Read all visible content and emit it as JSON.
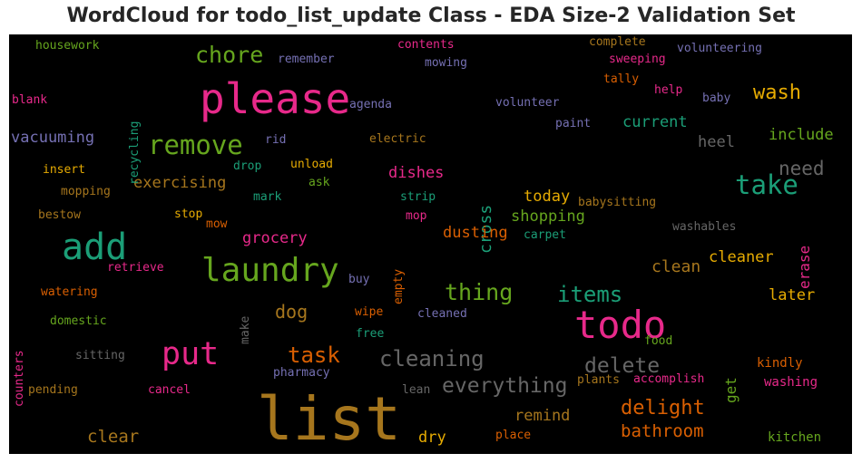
{
  "chart_data": {
    "type": "wordcloud",
    "title": "WordCloud for todo_list_update Class - EDA Size-2 Validation Set",
    "background": "#000000",
    "palette": [
      "#1b9e77",
      "#d95f02",
      "#7570b3",
      "#e7298a",
      "#66a61e",
      "#e6ab02",
      "#a6761d",
      "#666666"
    ],
    "words": [
      {
        "text": "list",
        "size": 66,
        "color": "#a6761d"
      },
      {
        "text": "please",
        "size": 46,
        "color": "#e7298a"
      },
      {
        "text": "todo",
        "size": 42,
        "color": "#e7298a"
      },
      {
        "text": "add",
        "size": 40,
        "color": "#1b9e77"
      },
      {
        "text": "laundry",
        "size": 36,
        "color": "#66a61e"
      },
      {
        "text": "put",
        "size": 35,
        "color": "#e7298a"
      },
      {
        "text": "remove",
        "size": 29,
        "color": "#66a61e"
      },
      {
        "text": "take",
        "size": 29,
        "color": "#1b9e77"
      },
      {
        "text": "chore",
        "size": 25,
        "color": "#66a61e"
      },
      {
        "text": "thing",
        "size": 25,
        "color": "#66a61e"
      },
      {
        "text": "items",
        "size": 24,
        "color": "#1b9e77"
      },
      {
        "text": "task",
        "size": 24,
        "color": "#d95f02"
      },
      {
        "text": "cleaning",
        "size": 24,
        "color": "#666666"
      },
      {
        "text": "everything",
        "size": 23,
        "color": "#666666"
      },
      {
        "text": "delete",
        "size": 23,
        "color": "#666666"
      },
      {
        "text": "wash",
        "size": 22,
        "color": "#e6ab02"
      },
      {
        "text": "delight",
        "size": 22,
        "color": "#d95f02"
      },
      {
        "text": "need",
        "size": 21,
        "color": "#666666"
      },
      {
        "text": "dog",
        "size": 20,
        "color": "#a6761d"
      },
      {
        "text": "bathroom",
        "size": 19,
        "color": "#d95f02"
      },
      {
        "text": "clear",
        "size": 19,
        "color": "#a6761d"
      },
      {
        "text": "cross",
        "size": 18,
        "color": "#1b9e77"
      },
      {
        "text": "clean",
        "size": 18,
        "color": "#a6761d"
      },
      {
        "text": "exercising",
        "size": 17,
        "color": "#a6761d"
      },
      {
        "text": "vacuuming",
        "size": 17,
        "color": "#7570b3"
      },
      {
        "text": "current",
        "size": 17,
        "color": "#1b9e77"
      },
      {
        "text": "include",
        "size": 17,
        "color": "#66a61e"
      },
      {
        "text": "heel",
        "size": 17,
        "color": "#666666"
      },
      {
        "text": "dishes",
        "size": 17,
        "color": "#e7298a"
      },
      {
        "text": "dusting",
        "size": 17,
        "color": "#d95f02"
      },
      {
        "text": "shopping",
        "size": 17,
        "color": "#66a61e"
      },
      {
        "text": "grocery",
        "size": 17,
        "color": "#e7298a"
      },
      {
        "text": "cleaner",
        "size": 17,
        "color": "#e6ab02"
      },
      {
        "text": "later",
        "size": 17,
        "color": "#e6ab02"
      },
      {
        "text": "remind",
        "size": 17,
        "color": "#a6761d"
      },
      {
        "text": "dry",
        "size": 17,
        "color": "#e6ab02"
      },
      {
        "text": "today",
        "size": 17,
        "color": "#e6ab02"
      },
      {
        "text": "erase",
        "size": 16,
        "color": "#e7298a"
      },
      {
        "text": "get",
        "size": 16,
        "color": "#66a61e"
      },
      {
        "text": "kindly",
        "size": 14,
        "color": "#d95f02"
      },
      {
        "text": "washing",
        "size": 14,
        "color": "#e7298a"
      },
      {
        "text": "kitchen",
        "size": 14,
        "color": "#66a61e"
      },
      {
        "text": "housework",
        "size": 13,
        "color": "#66a61e"
      },
      {
        "text": "blank",
        "size": 13,
        "color": "#e7298a"
      },
      {
        "text": "recycling",
        "size": 13,
        "color": "#1b9e77"
      },
      {
        "text": "remember",
        "size": 13,
        "color": "#7570b3"
      },
      {
        "text": "contents",
        "size": 13,
        "color": "#e7298a"
      },
      {
        "text": "mowing",
        "size": 13,
        "color": "#7570b3"
      },
      {
        "text": "complete",
        "size": 13,
        "color": "#a6761d"
      },
      {
        "text": "sweeping",
        "size": 13,
        "color": "#e7298a"
      },
      {
        "text": "volunteering",
        "size": 13,
        "color": "#7570b3"
      },
      {
        "text": "tally",
        "size": 13,
        "color": "#d95f02"
      },
      {
        "text": "help",
        "size": 13,
        "color": "#e7298a"
      },
      {
        "text": "baby",
        "size": 13,
        "color": "#7570b3"
      },
      {
        "text": "agenda",
        "size": 13,
        "color": "#7570b3"
      },
      {
        "text": "volunteer",
        "size": 13,
        "color": "#7570b3"
      },
      {
        "text": "paint",
        "size": 13,
        "color": "#7570b3"
      },
      {
        "text": "rid",
        "size": 13,
        "color": "#7570b3"
      },
      {
        "text": "electric",
        "size": 13,
        "color": "#a6761d"
      },
      {
        "text": "insert",
        "size": 13,
        "color": "#e6ab02"
      },
      {
        "text": "drop",
        "size": 13,
        "color": "#1b9e77"
      },
      {
        "text": "unload",
        "size": 13,
        "color": "#e6ab02"
      },
      {
        "text": "mopping",
        "size": 13,
        "color": "#a6761d"
      },
      {
        "text": "mark",
        "size": 13,
        "color": "#1b9e77"
      },
      {
        "text": "ask",
        "size": 13,
        "color": "#66a61e"
      },
      {
        "text": "strip",
        "size": 13,
        "color": "#1b9e77"
      },
      {
        "text": "babysitting",
        "size": 13,
        "color": "#a6761d"
      },
      {
        "text": "bestow",
        "size": 13,
        "color": "#a6761d"
      },
      {
        "text": "stop",
        "size": 13,
        "color": "#e6ab02"
      },
      {
        "text": "mow",
        "size": 13,
        "color": "#d95f02"
      },
      {
        "text": "mop",
        "size": 13,
        "color": "#e7298a"
      },
      {
        "text": "washables",
        "size": 13,
        "color": "#666666"
      },
      {
        "text": "carpet",
        "size": 13,
        "color": "#1b9e77"
      },
      {
        "text": "empty",
        "size": 13,
        "color": "#d95f02"
      },
      {
        "text": "retrieve",
        "size": 13,
        "color": "#e7298a"
      },
      {
        "text": "buy",
        "size": 13,
        "color": "#7570b3"
      },
      {
        "text": "watering",
        "size": 13,
        "color": "#d95f02"
      },
      {
        "text": "make",
        "size": 13,
        "color": "#666666"
      },
      {
        "text": "counters",
        "size": 13,
        "color": "#e7298a"
      },
      {
        "text": "domestic",
        "size": 13,
        "color": "#66a61e"
      },
      {
        "text": "wipe",
        "size": 13,
        "color": "#d95f02"
      },
      {
        "text": "cleaned",
        "size": 13,
        "color": "#7570b3"
      },
      {
        "text": "free",
        "size": 13,
        "color": "#1b9e77"
      },
      {
        "text": "food",
        "size": 13,
        "color": "#66a61e"
      },
      {
        "text": "sitting",
        "size": 13,
        "color": "#666666"
      },
      {
        "text": "pharmacy",
        "size": 13,
        "color": "#7570b3"
      },
      {
        "text": "accomplish",
        "size": 13,
        "color": "#e7298a"
      },
      {
        "text": "plants",
        "size": 13,
        "color": "#a6761d"
      },
      {
        "text": "pending",
        "size": 13,
        "color": "#a6761d"
      },
      {
        "text": "cancel",
        "size": 13,
        "color": "#e7298a"
      },
      {
        "text": "lean",
        "size": 13,
        "color": "#666666"
      },
      {
        "text": "place",
        "size": 13,
        "color": "#d95f02"
      }
    ]
  }
}
